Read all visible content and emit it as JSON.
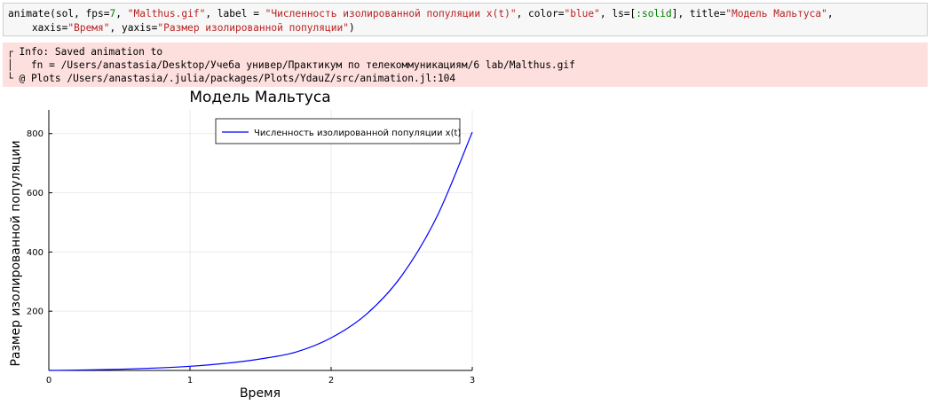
{
  "code_cell": {
    "line1_parts": [
      {
        "t": "animate(sol, fps=",
        "c": ""
      },
      {
        "t": "7",
        "c": "num"
      },
      {
        "t": ", ",
        "c": ""
      },
      {
        "t": "\"Malthus.gif\"",
        "c": "str"
      },
      {
        "t": ", label = ",
        "c": ""
      },
      {
        "t": "\"Численность изолированной популяции x(t)\"",
        "c": "str"
      },
      {
        "t": ", color=",
        "c": ""
      },
      {
        "t": "\"blue\"",
        "c": "str"
      },
      {
        "t": ", ls=[",
        "c": ""
      },
      {
        "t": ":solid",
        "c": "sym"
      },
      {
        "t": "], title=",
        "c": ""
      },
      {
        "t": "\"Модель Мальтуса\"",
        "c": "str"
      },
      {
        "t": ",",
        "c": ""
      }
    ],
    "line2_parts": [
      {
        "t": "    xaxis=",
        "c": ""
      },
      {
        "t": "\"Время\"",
        "c": "str"
      },
      {
        "t": ", yaxis=",
        "c": ""
      },
      {
        "t": "\"Размер изолированной популяции\"",
        "c": "str"
      },
      {
        "t": ")",
        "c": ""
      }
    ]
  },
  "info_output": {
    "line1": "┌ Info: Saved animation to",
    "line2": "│   fn = /Users/anastasia/Desktop/Учеба универ/Практикум по телекоммуникациям/6 lab/Malthus.gif",
    "line3": "└ @ Plots /Users/anastasia/.julia/packages/Plots/YdauZ/src/animation.jl:104"
  },
  "chart_data": {
    "type": "line",
    "title": "Модель Мальтуса",
    "xlabel": "Время",
    "ylabel": "Размер изолированной популяции",
    "xlim": [
      0,
      3
    ],
    "ylim": [
      0,
      880
    ],
    "xticks": [
      0,
      1,
      2,
      3
    ],
    "yticks": [
      200,
      400,
      600,
      800
    ],
    "grid": true,
    "legend_position": "top-right",
    "series": [
      {
        "name": "Численность изолированной популяции x(t)",
        "color": "#0000ff",
        "x": [
          0,
          0.25,
          0.5,
          0.75,
          1.0,
          1.25,
          1.5,
          1.75,
          2.0,
          2.25,
          2.5,
          2.75,
          3.0
        ],
        "values": [
          0,
          1.5,
          4,
          8,
          14,
          24,
          39,
          62,
          110,
          190,
          320,
          520,
          805
        ]
      }
    ]
  }
}
